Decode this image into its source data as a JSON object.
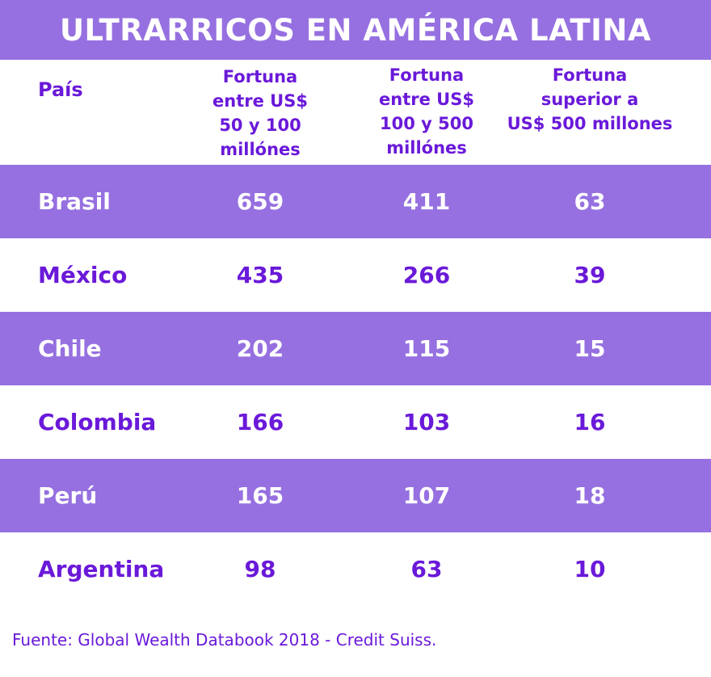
{
  "title": "ULTRARRICOS EN AMÉRICA LATINA",
  "headers": {
    "country": "País",
    "col1": [
      "Fortuna",
      "entre US$",
      "50 y 100",
      "millónes"
    ],
    "col2": [
      "Fortuna",
      "entre US$",
      "100 y 500",
      "millónes"
    ],
    "col3": [
      "Fortuna",
      "superior a",
      "US$ 500 millones"
    ]
  },
  "colors": {
    "accent": "#9670e0",
    "text_purple": "#6a19d9",
    "background": "#ffffff"
  },
  "chart_data": {
    "type": "table",
    "title": "ULTRARRICOS EN AMÉRICA LATINA",
    "columns": [
      "País",
      "Fortuna entre US$ 50 y 100 millónes",
      "Fortuna entre US$ 100 y 500 millónes",
      "Fortuna superior a US$ 500 millones"
    ],
    "rows": [
      {
        "country": "Brasil",
        "v1": "659",
        "v2": "411",
        "v3": "63"
      },
      {
        "country": "México",
        "v1": "435",
        "v2": "266",
        "v3": "39"
      },
      {
        "country": "Chile",
        "v1": "202",
        "v2": "115",
        "v3": "15"
      },
      {
        "country": "Colombia",
        "v1": "166",
        "v2": "103",
        "v3": "16"
      },
      {
        "country": "Perú",
        "v1": "165",
        "v2": "107",
        "v3": "18"
      },
      {
        "country": "Argentina",
        "v1": "98",
        "v2": "63",
        "v3": "10"
      }
    ]
  },
  "source": "Fuente: Global Wealth Databook 2018 - Credit Suiss."
}
